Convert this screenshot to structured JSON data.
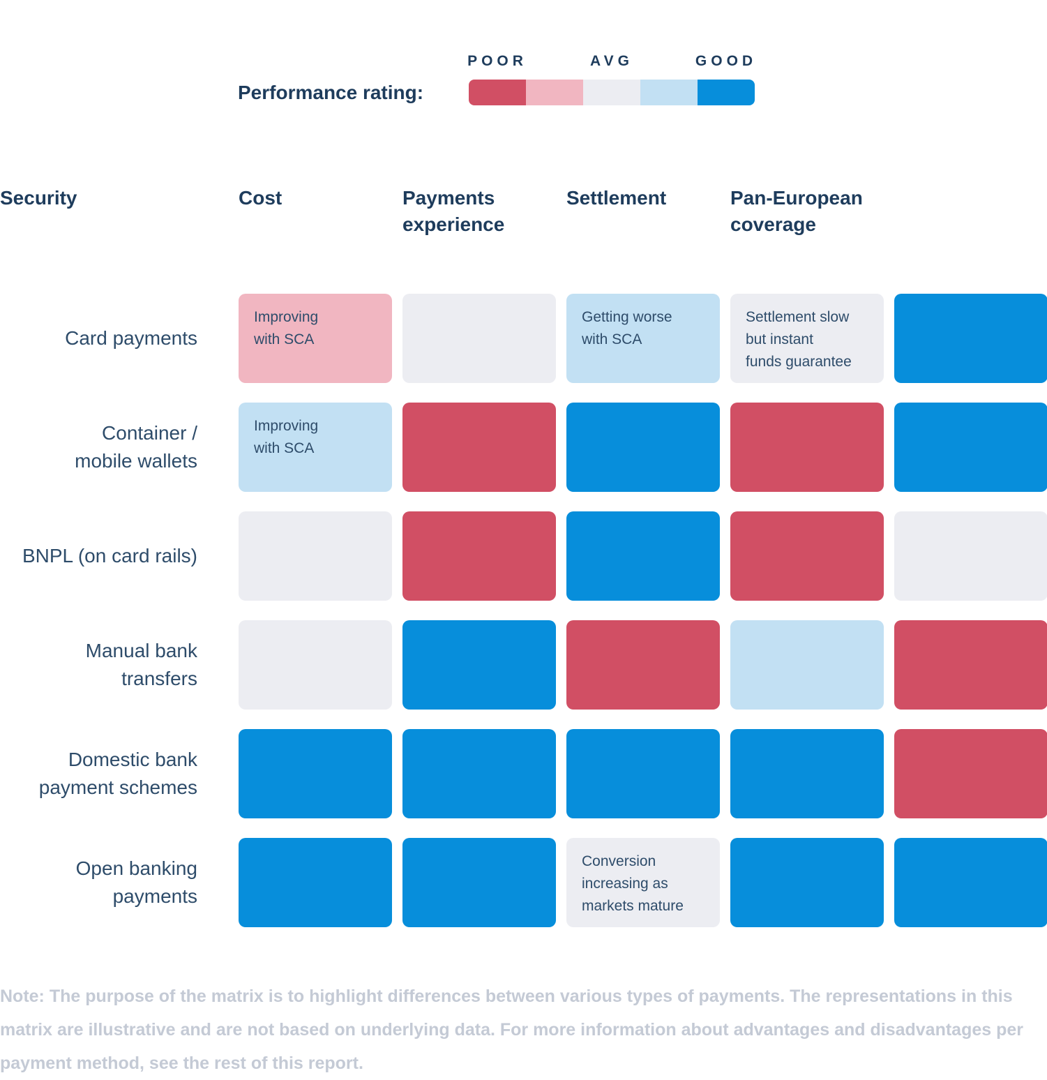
{
  "legend": {
    "label": "Performance rating:",
    "scale_labels": [
      "POOR",
      "AVG",
      "GOOD"
    ],
    "colors": {
      "poor": "#d14f64",
      "poor_avg": "#f1b6c1",
      "avg": "#ecedf2",
      "avg_good": "#c2e0f3",
      "good": "#078edb"
    }
  },
  "chart_data": {
    "type": "heatmap",
    "title": "Performance rating",
    "rating_scale": [
      "poor",
      "poor_avg",
      "avg",
      "avg_good",
      "good"
    ],
    "columns": [
      "Security",
      "Cost",
      "Payments\nexperience",
      "Settlement",
      "Pan-European\ncoverage"
    ],
    "rows": [
      {
        "label": "Card payments",
        "ratings": [
          "poor_avg",
          "avg",
          "avg_good",
          "avg",
          "good"
        ],
        "notes": [
          "Improving\nwith SCA",
          "",
          "Getting worse\nwith SCA",
          "Settlement slow\nbut instant\nfunds guarantee",
          ""
        ]
      },
      {
        "label": "Container /\nmobile wallets",
        "ratings": [
          "avg_good",
          "poor",
          "good",
          "poor",
          "good"
        ],
        "notes": [
          "Improving\nwith SCA",
          "",
          "",
          "",
          ""
        ]
      },
      {
        "label": "BNPL (on card rails)",
        "ratings": [
          "avg",
          "poor",
          "good",
          "poor",
          "avg"
        ],
        "notes": [
          "",
          "",
          "",
          "",
          ""
        ]
      },
      {
        "label": "Manual bank\ntransfers",
        "ratings": [
          "avg",
          "good",
          "poor",
          "avg_good",
          "poor"
        ],
        "notes": [
          "",
          "",
          "",
          "",
          ""
        ]
      },
      {
        "label": "Domestic bank\npayment schemes",
        "ratings": [
          "good",
          "good",
          "good",
          "good",
          "poor"
        ],
        "notes": [
          "",
          "",
          "",
          "",
          ""
        ]
      },
      {
        "label": "Open banking\npayments",
        "ratings": [
          "good",
          "good",
          "avg",
          "good",
          "good"
        ],
        "notes": [
          "",
          "",
          "Conversion\nincreasing as\nmarkets mature",
          "",
          ""
        ]
      }
    ]
  },
  "note": "Note: The purpose of the matrix is to highlight differences between various types of payments. The representations in this matrix are illustrative and are not based on underlying data. For more information about advantages and disadvantages per payment method, see the rest of this report."
}
